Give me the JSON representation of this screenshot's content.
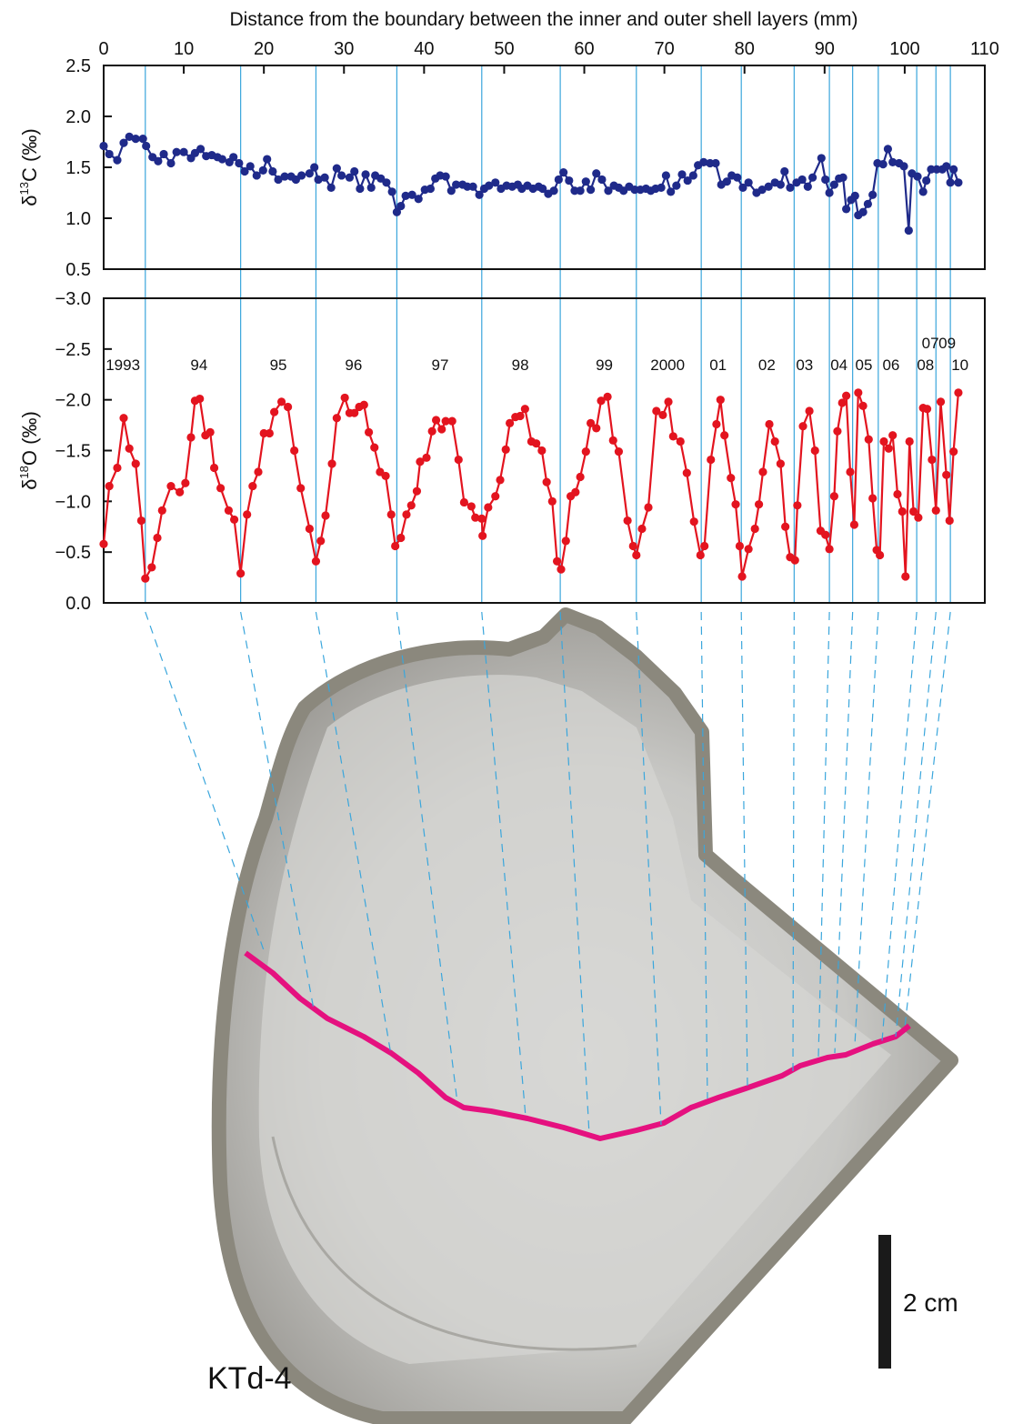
{
  "chart_data": [
    {
      "type": "line",
      "title": "Distance from the boundary between the inner and outer shell layers (mm)",
      "xlim": [
        0,
        110
      ],
      "xticks": [
        0,
        10,
        20,
        30,
        40,
        50,
        60,
        70,
        80,
        90,
        100,
        110
      ],
      "ylim": [
        0.5,
        2.5
      ],
      "yticks": [
        0.5,
        {
          "value": 1,
          "label": "1.0"
        },
        1.5,
        {
          "value": 2,
          "label": "2.0"
        },
        2.5
      ],
      "ylabel": [
        "δ",
        "13",
        "C (‰)"
      ],
      "series": [
        {
          "color": "#1f2a8a",
          "x": [
            0,
            0.7,
            1.7,
            2.5,
            3.2,
            4.0,
            4.9,
            5.3,
            6.1,
            6.8,
            7.5,
            8.4,
            9.1,
            10.0,
            10.9,
            11.4,
            12.1,
            12.8,
            13.5,
            14.2,
            14.8,
            15.7,
            16.2,
            16.9,
            17.6,
            18.3,
            19.1,
            19.9,
            20.4,
            21.1,
            21.8,
            22.6,
            23.4,
            24.0,
            24.7,
            25.7,
            26.3,
            26.8,
            27.6,
            28.4,
            29.1,
            29.7,
            30.7,
            31.3,
            32.0,
            32.7,
            33.4,
            33.9,
            34.6,
            35.3,
            36.0,
            36.6,
            37.1,
            37.7,
            38.5,
            39.3,
            40.1,
            40.8,
            41.4,
            42.0,
            42.7,
            43.4,
            44.0,
            44.8,
            45.4,
            46.1,
            46.9,
            47.5,
            48.1,
            48.9,
            49.6,
            50.3,
            51.0,
            51.7,
            52.2,
            52.9,
            53.6,
            54.3,
            54.8,
            55.5,
            56.2,
            56.8,
            57.4,
            58.1,
            58.8,
            59.5,
            60.2,
            60.8,
            61.5,
            62.2,
            63.0,
            63.7,
            64.3,
            64.9,
            65.6,
            66.3,
            67.0,
            67.7,
            68.3,
            68.9,
            69.6,
            70.2,
            70.8,
            71.5,
            72.2,
            72.9,
            73.6,
            74.2,
            74.9,
            75.7,
            76.4,
            77.1,
            77.8,
            78.4,
            79.1,
            79.8,
            80.5,
            81.5,
            82.2,
            83.0,
            83.8,
            84.5,
            85.0,
            85.7,
            86.5,
            87.2,
            87.9,
            88.5,
            89.6,
            90.1,
            90.6,
            91.2,
            91.8,
            92.3,
            92.7,
            93.3,
            93.8,
            94.2,
            94.8,
            95.4,
            96.0,
            96.6,
            97.3,
            97.9,
            98.5,
            99.3,
            99.9,
            100.5,
            100.9,
            101.6,
            102.3,
            102.7,
            103.3,
            104.0,
            104.7,
            105.2,
            105.7,
            106.1,
            106.7
          ],
          "values": [
            1.71,
            1.63,
            1.57,
            1.74,
            1.8,
            1.78,
            1.78,
            1.71,
            1.6,
            1.56,
            1.63,
            1.54,
            1.65,
            1.65,
            1.59,
            1.64,
            1.68,
            1.61,
            1.62,
            1.6,
            1.58,
            1.55,
            1.6,
            1.54,
            1.46,
            1.51,
            1.42,
            1.47,
            1.58,
            1.46,
            1.38,
            1.41,
            1.41,
            1.38,
            1.42,
            1.44,
            1.5,
            1.38,
            1.4,
            1.3,
            1.49,
            1.42,
            1.4,
            1.46,
            1.29,
            1.43,
            1.3,
            1.42,
            1.39,
            1.35,
            1.26,
            1.06,
            1.12,
            1.22,
            1.23,
            1.19,
            1.28,
            1.29,
            1.39,
            1.42,
            1.41,
            1.27,
            1.33,
            1.33,
            1.31,
            1.31,
            1.23,
            1.29,
            1.32,
            1.35,
            1.29,
            1.32,
            1.31,
            1.33,
            1.29,
            1.32,
            1.29,
            1.31,
            1.29,
            1.24,
            1.27,
            1.38,
            1.45,
            1.37,
            1.27,
            1.27,
            1.36,
            1.28,
            1.44,
            1.38,
            1.27,
            1.32,
            1.3,
            1.27,
            1.31,
            1.28,
            1.28,
            1.29,
            1.27,
            1.29,
            1.3,
            1.42,
            1.26,
            1.32,
            1.43,
            1.37,
            1.42,
            1.52,
            1.55,
            1.54,
            1.54,
            1.33,
            1.36,
            1.42,
            1.4,
            1.3,
            1.35,
            1.25,
            1.28,
            1.31,
            1.35,
            1.33,
            1.46,
            1.3,
            1.35,
            1.38,
            1.31,
            1.4,
            1.59,
            1.38,
            1.25,
            1.33,
            1.39,
            1.4,
            1.09,
            1.18,
            1.22,
            1.03,
            1.06,
            1.14,
            1.23,
            1.54,
            1.53,
            1.68,
            1.55,
            1.54,
            1.51,
            0.88,
            1.44,
            1.41,
            1.26,
            1.37,
            1.48,
            1.48,
            1.48,
            1.51,
            1.35,
            1.48,
            1.35
          ]
        }
      ]
    },
    {
      "type": "line",
      "xlim": [
        0,
        110
      ],
      "ylim": [
        0,
        -3
      ],
      "yticks": [
        {
          "value": 0,
          "label": "0.0"
        },
        {
          "value": -0.5,
          "label": "−0.5"
        },
        {
          "value": -1,
          "label": "−1.0"
        },
        {
          "value": -1.5,
          "label": "−1.5"
        },
        {
          "value": -2,
          "label": "−2.0"
        },
        {
          "value": -2.5,
          "label": "−2.5"
        },
        {
          "value": -3,
          "label": "−3.0"
        }
      ],
      "ylabel": [
        "δ",
        "18",
        "O (‰)"
      ],
      "boundaries": [
        5.2,
        17.1,
        26.5,
        36.6,
        47.2,
        57.0,
        66.5,
        74.6,
        79.6,
        86.2,
        90.6,
        93.5,
        96.7,
        101.5,
        103.9,
        105.7
      ],
      "annotations": [
        {
          "text": "1993",
          "x": 2.4
        },
        {
          "text": "94",
          "x": 11.9
        },
        {
          "text": "95",
          "x": 21.8
        },
        {
          "text": "96",
          "x": 31.2
        },
        {
          "text": "97",
          "x": 42.0
        },
        {
          "text": "98",
          "x": 52.0
        },
        {
          "text": "99",
          "x": 62.5
        },
        {
          "text": "2000",
          "x": 70.4
        },
        {
          "text": "01",
          "x": 76.7
        },
        {
          "text": "02",
          "x": 82.8
        },
        {
          "text": "03",
          "x": 87.5
        },
        {
          "text": "04",
          "x": 91.8
        },
        {
          "text": "05",
          "x": 94.9
        },
        {
          "text": "06",
          "x": 98.3
        },
        {
          "text": "08",
          "x": 102.6
        },
        {
          "text": "07",
          "x": 103.2
        },
        {
          "text": "09",
          "x": 105.3
        },
        {
          "text": "10",
          "x": 106.9
        }
      ],
      "series": [
        {
          "color": "#e3141f",
          "x": [
            0,
            0.7,
            1.7,
            2.5,
            3.2,
            4.0,
            4.7,
            5.2,
            6.0,
            6.7,
            7.3,
            8.4,
            9.5,
            10.2,
            10.9,
            11.4,
            12.0,
            12.7,
            13.3,
            13.8,
            14.6,
            15.6,
            16.3,
            17.1,
            17.9,
            18.6,
            19.3,
            20.0,
            20.7,
            21.3,
            22.2,
            23.0,
            23.8,
            24.6,
            25.7,
            26.5,
            27.1,
            27.7,
            28.5,
            29.1,
            30.1,
            30.7,
            31.3,
            31.9,
            32.5,
            33.1,
            33.8,
            34.5,
            35.2,
            35.9,
            36.4,
            37.1,
            37.8,
            38.4,
            39.1,
            39.5,
            40.3,
            41.0,
            41.5,
            42.2,
            42.7,
            43.5,
            44.3,
            45.0,
            45.9,
            46.4,
            47.2,
            47.3,
            48.0,
            48.9,
            49.5,
            50.2,
            50.7,
            51.4,
            52.0,
            52.6,
            53.4,
            54.0,
            54.7,
            55.3,
            56.0,
            56.6,
            57.1,
            57.7,
            58.3,
            58.9,
            59.5,
            60.2,
            60.8,
            61.5,
            62.1,
            62.9,
            63.6,
            64.3,
            65.4,
            66.1,
            66.5,
            67.2,
            68.0,
            69.0,
            69.8,
            70.5,
            71.1,
            72.0,
            72.8,
            73.7,
            74.5,
            75.0,
            75.8,
            76.5,
            77.0,
            77.5,
            78.3,
            78.9,
            79.4,
            79.7,
            80.5,
            81.3,
            81.8,
            82.3,
            83.1,
            83.8,
            84.5,
            85.1,
            85.7,
            86.3,
            86.6,
            87.3,
            88.1,
            88.8,
            89.5,
            90.1,
            90.6,
            91.2,
            91.6,
            92.2,
            92.7,
            93.2,
            93.7,
            94.2,
            94.8,
            95.5,
            96.0,
            96.5,
            96.9,
            97.4,
            98.0,
            98.5,
            99.1,
            99.7,
            100.1,
            100.6,
            101.1,
            101.7,
            102.3,
            102.8,
            103.4,
            103.9,
            104.5,
            105.2,
            105.6,
            106.1,
            106.7
          ],
          "values": [
            -0.58,
            -1.15,
            -1.33,
            -1.82,
            -1.52,
            -1.37,
            -0.81,
            -0.24,
            -0.35,
            -0.64,
            -0.91,
            -1.15,
            -1.09,
            -1.18,
            -1.63,
            -1.99,
            -2.01,
            -1.65,
            -1.68,
            -1.33,
            -1.13,
            -0.91,
            -0.82,
            -0.29,
            -0.87,
            -1.15,
            -1.29,
            -1.67,
            -1.67,
            -1.88,
            -1.98,
            -1.93,
            -1.5,
            -1.13,
            -0.73,
            -0.41,
            -0.61,
            -0.86,
            -1.37,
            -1.82,
            -2.02,
            -1.87,
            -1.87,
            -1.93,
            -1.95,
            -1.68,
            -1.53,
            -1.29,
            -1.25,
            -0.87,
            -0.56,
            -0.64,
            -0.87,
            -0.96,
            -1.1,
            -1.39,
            -1.43,
            -1.69,
            -1.8,
            -1.71,
            -1.79,
            -1.79,
            -1.41,
            -0.99,
            -0.95,
            -0.84,
            -0.83,
            -0.66,
            -0.94,
            -1.05,
            -1.21,
            -1.51,
            -1.77,
            -1.83,
            -1.84,
            -1.91,
            -1.59,
            -1.57,
            -1.5,
            -1.19,
            -1.0,
            -0.41,
            -0.33,
            -0.61,
            -1.05,
            -1.09,
            -1.24,
            -1.49,
            -1.77,
            -1.72,
            -1.99,
            -2.03,
            -1.6,
            -1.49,
            -0.81,
            -0.56,
            -0.47,
            -0.73,
            -0.94,
            -1.89,
            -1.85,
            -1.98,
            -1.64,
            -1.59,
            -1.28,
            -0.8,
            -0.47,
            -0.56,
            -1.41,
            -1.76,
            -2.0,
            -1.65,
            -1.23,
            -0.97,
            -0.56,
            -0.26,
            -0.53,
            -0.73,
            -0.97,
            -1.29,
            -1.76,
            -1.59,
            -1.37,
            -0.75,
            -0.45,
            -0.42,
            -0.96,
            -1.74,
            -1.89,
            -1.5,
            -0.71,
            -0.67,
            -0.53,
            -1.05,
            -1.69,
            -1.97,
            -2.04,
            -1.29,
            -0.77,
            -2.07,
            -1.94,
            -1.61,
            -1.03,
            -0.52,
            -0.47,
            -1.59,
            -1.52,
            -1.65,
            -1.07,
            -0.9,
            -0.26,
            -1.59,
            -0.9,
            -0.84,
            -1.92,
            -1.91,
            -1.41,
            -0.91,
            -1.98,
            -1.26,
            -0.81,
            -1.49,
            -2.07
          ]
        }
      ]
    }
  ],
  "photo": {
    "label": "KTd-4",
    "scale_label": "2 cm"
  }
}
